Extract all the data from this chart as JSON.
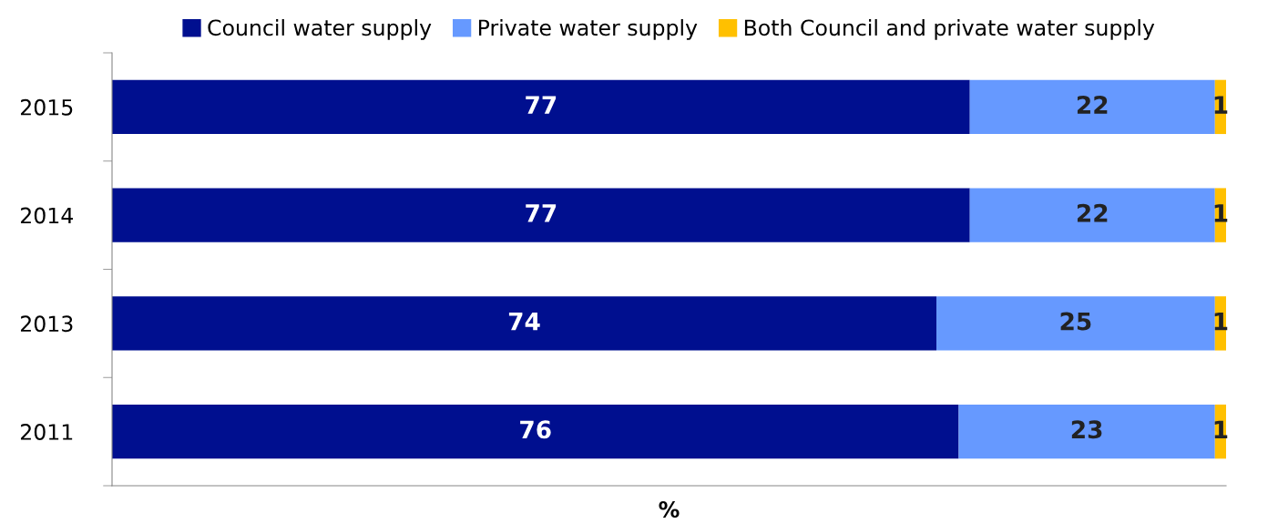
{
  "chart_data": {
    "type": "bar",
    "orientation": "horizontal",
    "stacked": true,
    "xlabel": "%",
    "categories": [
      "2015",
      "2014",
      "2013",
      "2011"
    ],
    "series": [
      {
        "name": "Council water supply",
        "color": "#000f8f",
        "values": [
          77,
          77,
          74,
          76
        ]
      },
      {
        "name": "Private water supply",
        "color": "#6699ff",
        "values": [
          22,
          22,
          25,
          23
        ]
      },
      {
        "name": "Both Council and private water supply",
        "color": "#ffc000",
        "values": [
          1,
          1,
          1,
          1
        ]
      }
    ],
    "xlim": [
      0,
      100
    ],
    "data_labels": true,
    "legend": "top",
    "grid": false,
    "tick_labels": "y"
  }
}
